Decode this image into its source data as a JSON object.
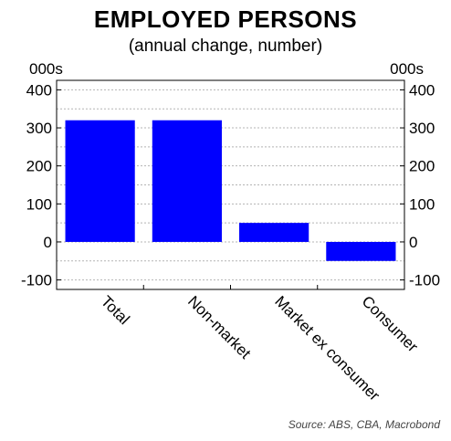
{
  "chart_data": {
    "type": "bar",
    "title": "EMPLOYED PERSONS",
    "subtitle": "(annual change, number)",
    "ylabel_left": "000s",
    "ylabel_right": "000s",
    "categories": [
      "Total",
      "Non-market",
      "Market ex consumer",
      "Consumer"
    ],
    "values": [
      320,
      320,
      50,
      -50
    ],
    "ylim": [
      -125,
      425
    ],
    "yticks": [
      -100,
      0,
      100,
      200,
      300,
      400
    ],
    "bar_color": "#0000ff",
    "grid": true,
    "source": "Source: ABS, CBA, Macrobond"
  }
}
